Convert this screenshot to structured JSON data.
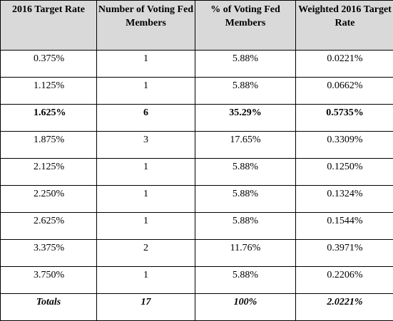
{
  "table": {
    "headers": [
      "2016 Target Rate",
      "Number of Voting Fed Members",
      "% of Voting Fed Members",
      "Weighted 2016 Target Rate"
    ],
    "rows": [
      {
        "rate": "0.375%",
        "count": "1",
        "pct": "5.88%",
        "weighted": "0.0221%",
        "bold": false
      },
      {
        "rate": "1.125%",
        "count": "1",
        "pct": "5.88%",
        "weighted": "0.0662%",
        "bold": false
      },
      {
        "rate": "1.625%",
        "count": "6",
        "pct": "35.29%",
        "weighted": "0.5735%",
        "bold": true
      },
      {
        "rate": "1.875%",
        "count": "3",
        "pct": "17.65%",
        "weighted": "0.3309%",
        "bold": false
      },
      {
        "rate": "2.125%",
        "count": "1",
        "pct": "5.88%",
        "weighted": "0.1250%",
        "bold": false
      },
      {
        "rate": "2.250%",
        "count": "1",
        "pct": "5.88%",
        "weighted": "0.1324%",
        "bold": false
      },
      {
        "rate": "2.625%",
        "count": "1",
        "pct": "5.88%",
        "weighted": "0.1544%",
        "bold": false
      },
      {
        "rate": "3.375%",
        "count": "2",
        "pct": "11.76%",
        "weighted": "0.3971%",
        "bold": false
      },
      {
        "rate": "3.750%",
        "count": "1",
        "pct": "5.88%",
        "weighted": "0.2206%",
        "bold": false
      }
    ],
    "totals": {
      "label": "Totals",
      "count": "17",
      "pct": "100%",
      "weighted": "2.0221%"
    }
  },
  "colors": {
    "header_bg": "#d9d9d9",
    "border": "#000000",
    "text": "#000000"
  }
}
